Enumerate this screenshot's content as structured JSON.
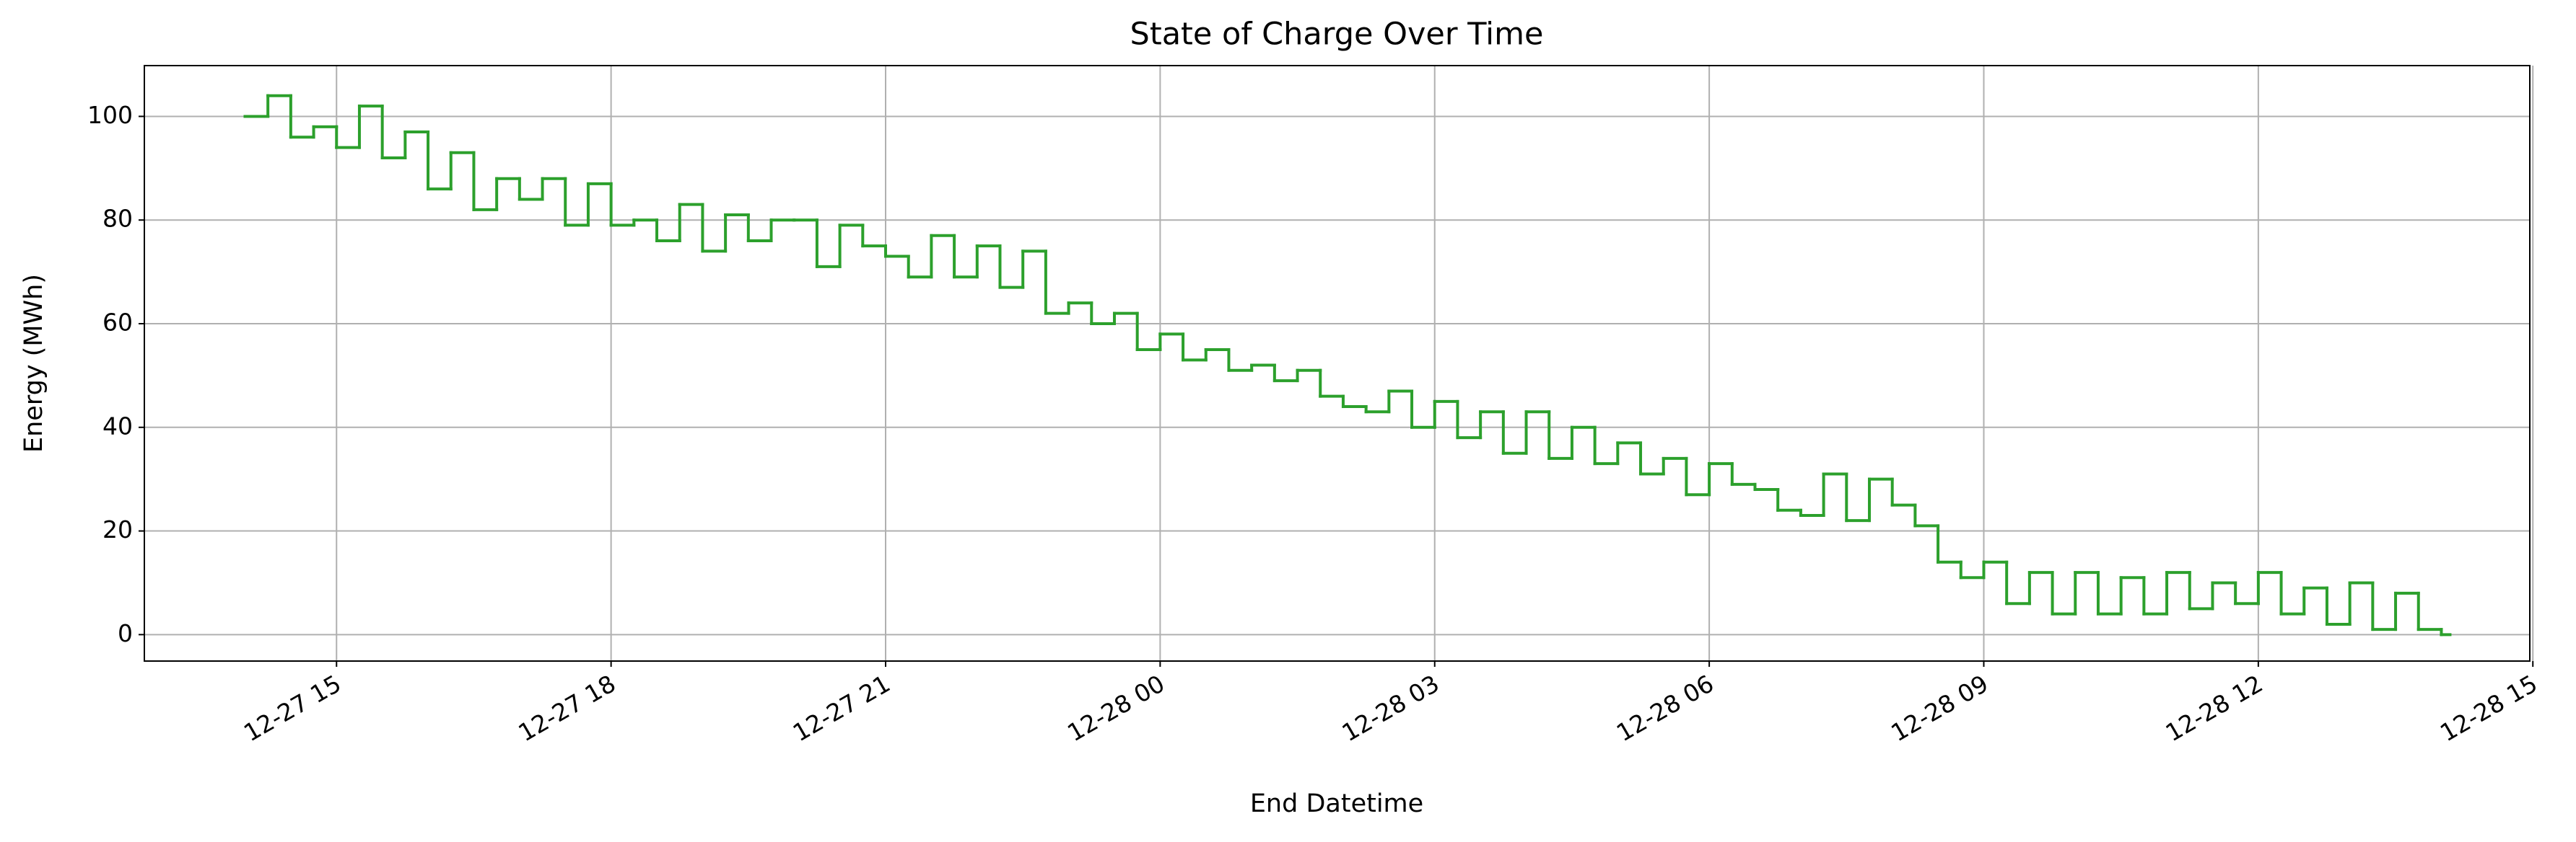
{
  "chart_data": {
    "type": "line",
    "drawstyle": "steps-post",
    "title": "State of Charge Over Time",
    "x_label": "End Datetime",
    "y_label": "Energy (MWh)",
    "x": [
      "12-27 14:00",
      "12-27 14:15",
      "12-27 14:30",
      "12-27 14:45",
      "12-27 15:00",
      "12-27 15:15",
      "12-27 15:30",
      "12-27 15:45",
      "12-27 16:00",
      "12-27 16:15",
      "12-27 16:30",
      "12-27 16:45",
      "12-27 17:00",
      "12-27 17:15",
      "12-27 17:30",
      "12-27 17:45",
      "12-27 18:00",
      "12-27 18:15",
      "12-27 18:30",
      "12-27 18:45",
      "12-27 19:00",
      "12-27 19:15",
      "12-27 19:30",
      "12-27 19:45",
      "12-27 20:00",
      "12-27 20:15",
      "12-27 20:30",
      "12-27 20:45",
      "12-27 21:00",
      "12-27 21:15",
      "12-27 21:30",
      "12-27 21:45",
      "12-27 22:00",
      "12-27 22:15",
      "12-27 22:30",
      "12-27 22:45",
      "12-27 23:00",
      "12-27 23:15",
      "12-27 23:30",
      "12-27 23:45",
      "12-28 00:00",
      "12-28 00:15",
      "12-28 00:30",
      "12-28 00:45",
      "12-28 01:00",
      "12-28 01:15",
      "12-28 01:30",
      "12-28 01:45",
      "12-28 02:00",
      "12-28 02:15",
      "12-28 02:30",
      "12-28 02:45",
      "12-28 03:00",
      "12-28 03:15",
      "12-28 03:30",
      "12-28 03:45",
      "12-28 04:00",
      "12-28 04:15",
      "12-28 04:30",
      "12-28 04:45",
      "12-28 05:00",
      "12-28 05:15",
      "12-28 05:30",
      "12-28 05:45",
      "12-28 06:00",
      "12-28 06:15",
      "12-28 06:30",
      "12-28 06:45",
      "12-28 07:00",
      "12-28 07:15",
      "12-28 07:30",
      "12-28 07:45",
      "12-28 08:00",
      "12-28 08:15",
      "12-28 08:30",
      "12-28 08:45",
      "12-28 09:00",
      "12-28 09:15",
      "12-28 09:30",
      "12-28 09:45",
      "12-28 10:00",
      "12-28 10:15",
      "12-28 10:30",
      "12-28 10:45",
      "12-28 11:00",
      "12-28 11:15",
      "12-28 11:30",
      "12-28 11:45",
      "12-28 12:00",
      "12-28 12:15",
      "12-28 12:30",
      "12-28 12:45",
      "12-28 13:00",
      "12-28 13:15",
      "12-28 13:30",
      "12-28 13:45",
      "12-28 14:00"
    ],
    "series": [
      {
        "name": "State of Charge",
        "color": "#2ca02c",
        "values": [
          100,
          104,
          96,
          98,
          94,
          102,
          92,
          97,
          86,
          93,
          82,
          88,
          84,
          88,
          79,
          87,
          79,
          80,
          76,
          83,
          74,
          81,
          76,
          80,
          80,
          71,
          79,
          75,
          73,
          69,
          77,
          69,
          75,
          67,
          74,
          62,
          64,
          60,
          62,
          55,
          58,
          53,
          55,
          51,
          52,
          49,
          51,
          46,
          44,
          43,
          47,
          40,
          45,
          38,
          43,
          35,
          43,
          34,
          40,
          33,
          37,
          31,
          34,
          27,
          33,
          29,
          28,
          24,
          23,
          31,
          22,
          30,
          25,
          21,
          14,
          11,
          14,
          6,
          12,
          4,
          12,
          4,
          11,
          4,
          12,
          5,
          10,
          6,
          12,
          4,
          9,
          2,
          10,
          1,
          8,
          1,
          0
        ]
      }
    ],
    "xlim": [
      "12-27 12:54",
      "12-28 14:58"
    ],
    "xticks": [
      "12-27 15",
      "12-27 18",
      "12-27 21",
      "12-28 00",
      "12-28 03",
      "12-28 06",
      "12-28 09",
      "12-28 12",
      "12-28 15"
    ],
    "ylim": [
      -5.1,
      109.8
    ],
    "yticks": [
      0,
      20,
      40,
      60,
      80,
      100
    ],
    "grid": true
  }
}
